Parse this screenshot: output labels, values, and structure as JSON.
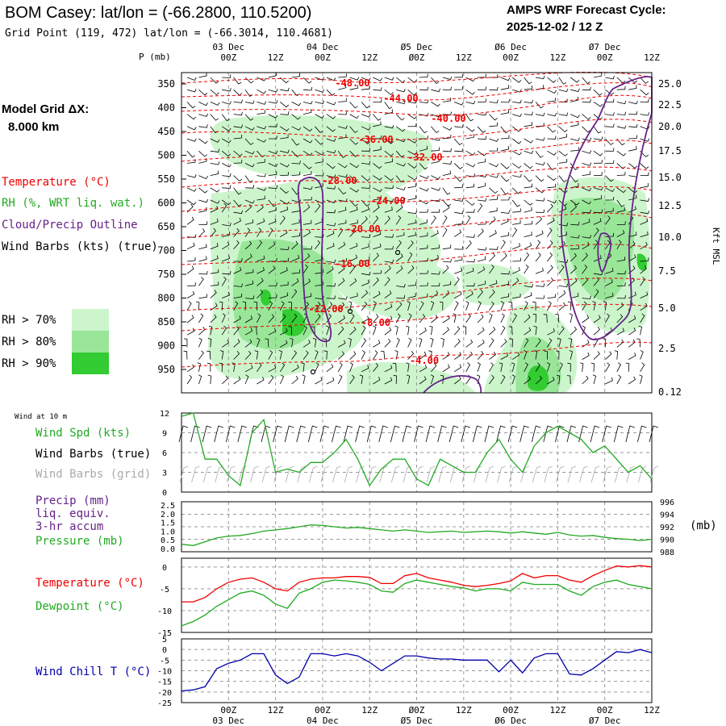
{
  "header": {
    "title": "BOM Casey:  lat/lon = (-66.2800, 110.5200)",
    "subtitle": "Grid Point (119, 472) lat/lon = (-66.3014, 110.4681)",
    "cycle_label": "AMPS WRF Forecast Cycle:",
    "cycle_value": "2025-12-02 / 12  Z"
  },
  "left_labels": {
    "model_grid": "Model Grid ΔX:",
    "model_grid_value": "8.000 km",
    "temperature": "Temperature (°C)",
    "rh": "RH (%, WRT liq. wat.)",
    "cloud": "Cloud/Precip Outline",
    "wind_barbs": "Wind Barbs (kts) (true)",
    "rh70": "RH > 70%",
    "rh80": "RH > 80%",
    "rh90": "RH > 90%"
  },
  "time_axis": {
    "date_labels": [
      "03 Dec",
      "04 Dec",
      "Ø5 Dec",
      "Ø6 Dec",
      "Ø7 Dec"
    ],
    "hour_labels": [
      "00Z",
      "12Z",
      "00Z",
      "12Z",
      "Ø0Z",
      "12Z",
      "00Z",
      "12Z",
      "00Z",
      "12Z"
    ],
    "forecast_hours": [
      0,
      3,
      6,
      9,
      12,
      15,
      18,
      21,
      24,
      27,
      30,
      33,
      36,
      39,
      42,
      45,
      48,
      51,
      54,
      57,
      60,
      63,
      66,
      69,
      72,
      75,
      78,
      81,
      84,
      87,
      90,
      93,
      96,
      99,
      102,
      105,
      108,
      111,
      114,
      117,
      120
    ]
  },
  "colors": {
    "temperature": "#ee0000",
    "rh": "#22aa22",
    "cloud": "#662288",
    "barbs": "#000000",
    "grid_barbs": "#aaaaaa",
    "rh70": "#ccf5cc",
    "rh80": "#99e699",
    "rh90": "#33cc33",
    "windchill": "#0000aa",
    "pressure": "#22aa22"
  },
  "chart_data": [
    {
      "type": "heatmap",
      "name": "cross-section",
      "ylabel": "P (mb)",
      "ylabel_right": "Kft MSL",
      "pressure_ticks": [
        "350",
        "400",
        "450",
        "500",
        "550",
        "600",
        "650",
        "700",
        "750",
        "800",
        "850",
        "900",
        "950"
      ],
      "height_ticks": [
        "25.0",
        "22.5",
        "20.0",
        "17.5",
        "15.0",
        "12.5",
        "10.0",
        "7.5",
        "5.0",
        "2.5",
        "0.12"
      ],
      "temperature_labels": [
        "-48.00",
        "-44.00",
        "-40.00",
        "-36.00",
        "-32.00",
        "-28.00",
        "-24.00",
        "-20.00",
        "-16.00",
        "-12.00",
        "-8.00",
        "-4.00"
      ]
    },
    {
      "type": "line",
      "name": "wind-10m",
      "panel_label": "Wind at 10 m",
      "legend_spd": "Wind Spd (kts)",
      "legend_barbs": "Wind Barbs (true)",
      "legend_grid": "Wind Barbs (grid)",
      "y_ticks": [
        "12",
        "9",
        "6",
        "3",
        "0"
      ],
      "ylim": [
        0,
        12
      ],
      "series": [
        {
          "values": [
            11.5,
            12,
            5,
            5,
            2.5,
            1,
            9,
            11,
            3,
            3.5,
            3,
            4.5,
            4.5,
            6,
            8,
            5,
            1,
            3.5,
            5,
            5,
            2,
            1,
            5,
            4,
            3,
            3,
            6,
            8,
            5,
            3,
            7,
            9,
            10,
            9,
            8,
            6,
            7,
            5,
            3,
            4,
            2
          ]
        }
      ]
    },
    {
      "type": "line",
      "name": "precip-pressure",
      "legend_precip": "Precip (mm)",
      "legend_liq": "liq. equiv.",
      "legend_accum": "3-hr accum",
      "legend_pressure": "Pressure (mb)",
      "y_ticks_left": [
        "2.5",
        "2.0",
        "1.5",
        "1.0",
        "0.5",
        "0.0"
      ],
      "y_ticks_right": [
        "996",
        "994",
        "992",
        "990",
        "988"
      ],
      "right_unit": "(mb)",
      "ylim": [
        988,
        996
      ],
      "series": [
        {
          "values": [
            989.2,
            989.0,
            989.6,
            990.2,
            990.5,
            990.6,
            990.9,
            991.3,
            991.5,
            991.7,
            992.0,
            992.3,
            992.2,
            992.0,
            991.8,
            991.9,
            991.7,
            991.5,
            991.3,
            991.5,
            991.3,
            991.1,
            991.2,
            991.3,
            991.1,
            991.2,
            991.3,
            991.2,
            991.0,
            991.2,
            991.0,
            990.8,
            991.1,
            990.7,
            990.5,
            990.6,
            990.3,
            990.1,
            990.0,
            989.8,
            990.0
          ]
        }
      ]
    },
    {
      "type": "line",
      "name": "temperature-dewpoint",
      "legend_temp": "Temperature (°C)",
      "legend_dew": "Dewpoint (°C)",
      "y_ticks": [
        "0",
        "-5",
        "-10",
        "-15"
      ],
      "ylim": [
        -15,
        2
      ],
      "series": [
        {
          "values": [
            -8.0,
            -8.0,
            -7.0,
            -5.0,
            -3.5,
            -2.8,
            -2.5,
            -3.5,
            -5.0,
            -5.5,
            -3.5,
            -2.8,
            -2.5,
            -2.5,
            -2.2,
            -2.2,
            -2.4,
            -3.8,
            -3.8,
            -2.0,
            -1.5,
            -2.5,
            -3.0,
            -3.5,
            -4.2,
            -4.5,
            -4.2,
            -3.8,
            -3.2,
            -1.5,
            -2.5,
            -2.0,
            -2.0,
            -3.0,
            -3.5,
            -2.0,
            -0.8,
            0.2,
            0.0,
            0.3,
            0.0
          ]
        },
        {
          "values": [
            -13.5,
            -12.5,
            -11.0,
            -9.0,
            -7.5,
            -6.0,
            -5.5,
            -6.5,
            -8.5,
            -9.5,
            -6.0,
            -5.0,
            -3.5,
            -3.0,
            -3.2,
            -3.5,
            -4.0,
            -5.5,
            -5.8,
            -3.8,
            -3.0,
            -3.5,
            -4.0,
            -4.5,
            -4.8,
            -5.5,
            -5.0,
            -5.0,
            -5.5,
            -3.5,
            -4.0,
            -4.0,
            -4.0,
            -5.5,
            -6.5,
            -4.5,
            -3.5,
            -3.0,
            -4.0,
            -4.5,
            -5.0
          ]
        }
      ]
    },
    {
      "type": "line",
      "name": "wind-chill",
      "legend": "Wind Chill T (°C)",
      "y_ticks": [
        "5",
        "0",
        "-5",
        "-10",
        "-15",
        "-20",
        "-25"
      ],
      "ylim": [
        -25,
        5
      ],
      "series": [
        {
          "values": [
            -19.5,
            -19.0,
            -17.5,
            -9.0,
            -6.5,
            -5.0,
            -2.0,
            -2.0,
            -12.0,
            -16.0,
            -13.0,
            -2.0,
            -2.0,
            -3.0,
            -2.0,
            -3.0,
            -6.0,
            -10.0,
            -6.5,
            -3.0,
            -3.0,
            -4.0,
            -4.5,
            -4.5,
            -5.0,
            -5.0,
            -5.0,
            -10.5,
            -5.0,
            -11.0,
            -4.0,
            -2.0,
            -2.0,
            -11.5,
            -12.0,
            -9.0,
            -5.0,
            -1.0,
            -1.5,
            0.0,
            -1.5
          ]
        }
      ]
    }
  ]
}
